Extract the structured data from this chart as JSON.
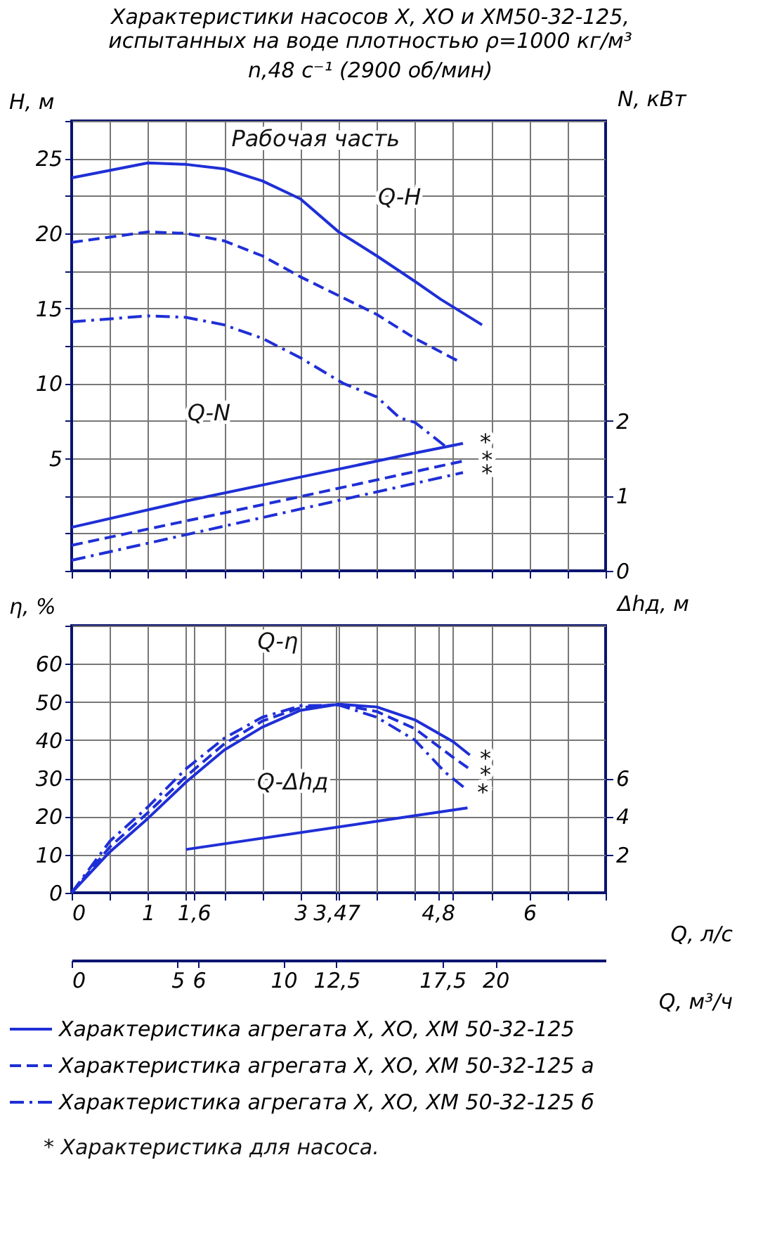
{
  "chart_data": [
    {
      "type": "line",
      "title": "Характеристики насосов Х, ХО и ХМ50-32-125,\nиспытанных на воде плотностью ρ=1000 кг/м³",
      "subtitle": "n,48 с⁻¹ (2900 об/мин)",
      "ylabel": "H, м",
      "y2label": "N, кВт",
      "xlim": [
        0,
        7
      ],
      "xticks": [
        0,
        {
          "value": 0.5,
          "label": null
        },
        1,
        {
          "value": 1.5,
          "label": null
        },
        2,
        {
          "value": 2.5,
          "label": null
        },
        3,
        {
          "value": 3.5,
          "label": null
        },
        4,
        {
          "value": 4.5,
          "label": null
        },
        5,
        {
          "value": 5.5,
          "label": null
        },
        6,
        {
          "value": 6.5,
          "label": null
        },
        7
      ],
      "ylim": [
        -2.5,
        27.5
      ],
      "yticks": [
        {
          "value": -2.5,
          "label": null
        },
        {
          "value": 0,
          "label": null
        },
        {
          "value": 2.5,
          "label": null
        },
        5,
        {
          "value": 7.5,
          "label": null
        },
        10,
        {
          "value": 12.5,
          "label": null
        },
        15,
        {
          "value": 17.5,
          "label": null
        },
        20,
        {
          "value": 22.5,
          "label": null
        },
        25,
        {
          "value": 27.5,
          "label": null
        }
      ],
      "y2lim": [
        0,
        6
      ],
      "y2ticks": [
        0,
        1,
        2
      ],
      "grid": true,
      "tick_labels": "y",
      "series": [
        {
          "color": "#1f2fd6",
          "line_style": "solid",
          "x": [
            0,
            1,
            1.5,
            2,
            2.5,
            3,
            3.5,
            4,
            4.5,
            4.84,
            5.38
          ],
          "values": [
            23.7,
            24.7,
            24.6,
            24.3,
            23.5,
            22.3,
            20.1,
            18.5,
            16.8,
            15.6,
            13.9
          ]
        },
        {
          "color": "#1f2fd6",
          "line_style": "dashed",
          "x": [
            0,
            1,
            1.5,
            2,
            2.5,
            3,
            3.56,
            4,
            4.5,
            5.1
          ],
          "values": [
            19.4,
            20.1,
            20.0,
            19.5,
            18.5,
            17.1,
            15.7,
            14.6,
            13.0,
            11.4
          ]
        },
        {
          "color": "#1f2fd6",
          "line_style": "dashdot",
          "x": [
            0,
            1,
            1.5,
            2,
            2.5,
            3,
            3.56,
            4,
            4.3,
            4.5,
            4.9
          ],
          "values": [
            14.1,
            14.5,
            14.4,
            13.9,
            13.0,
            11.7,
            10.0,
            9.1,
            7.7,
            7.4,
            5.8
          ]
        },
        {
          "color": "#1f2fd6",
          "line_style": "solid",
          "axis": "y2",
          "x": [
            0,
            1.5,
            3,
            4.5,
            5.13
          ],
          "values": [
            0.58,
            0.93,
            1.25,
            1.57,
            1.7
          ]
        },
        {
          "color": "#1f2fd6",
          "line_style": "dashed",
          "axis": "y2",
          "x": [
            0,
            3,
            5.16
          ],
          "values": [
            0.34,
            0.99,
            1.47
          ]
        },
        {
          "color": "#1f2fd6",
          "line_style": "dashdot",
          "axis": "y2",
          "x": [
            0,
            5.13
          ],
          "values": [
            0.14,
            1.31
          ]
        }
      ],
      "annotations": [
        "Рабочая часть",
        "Q-H",
        "Q-N",
        "*",
        "*",
        "*"
      ]
    },
    {
      "type": "line",
      "ylabel": "η, %",
      "y2label": "Δhд, м",
      "xlabel": "Q, л/с",
      "x2label": "Q, м³/ч",
      "xlim": [
        0,
        7
      ],
      "xticks": [
        0,
        1,
        {
          "value": 1.6,
          "label": "1,6"
        },
        3,
        {
          "value": 3.47,
          "label": "3,47"
        },
        {
          "value": 4.8,
          "label": "4,8"
        },
        6,
        {
          "value": 0.5,
          "label": null
        },
        {
          "value": 1.5,
          "label": null
        },
        {
          "value": 2,
          "label": null
        },
        {
          "value": 2.5,
          "label": null
        },
        {
          "value": 3.5,
          "label": null
        },
        {
          "value": 4,
          "label": null
        },
        {
          "value": 4.5,
          "label": null
        },
        {
          "value": 5,
          "label": null
        },
        {
          "value": 5.5,
          "label": null
        },
        {
          "value": 6.5,
          "label": null
        },
        {
          "value": 7,
          "label": null
        }
      ],
      "x2lim": [
        0,
        25.2
      ],
      "x2ticks": [
        0,
        5,
        6,
        10,
        {
          "value": 12.5,
          "label": "12,5"
        },
        {
          "value": 17.5,
          "label": "17,5"
        },
        20
      ],
      "ylim": [
        0,
        70
      ],
      "yticks": [
        0,
        10,
        20,
        30,
        40,
        50,
        60,
        {
          "value": 70,
          "label": null
        }
      ],
      "y2lim": [
        0,
        14
      ],
      "y2ticks": [
        2,
        4,
        6
      ],
      "grid": true,
      "legend": "bottom",
      "series": [
        {
          "name": "Характеристика агрегата Х, ХО, ХМ 50-32-125",
          "color": "#1f2fd6",
          "line_style": "solid",
          "x": [
            0,
            0.5,
            1,
            1.5,
            2,
            2.5,
            3,
            3.5,
            4,
            4.5,
            5,
            5.22
          ],
          "values": [
            0,
            10.7,
            19.5,
            29,
            37.4,
            43.4,
            47.8,
            49.4,
            48.7,
            45.3,
            39.6,
            36.1
          ]
        },
        {
          "name": "Характеристика агрегата Х, ХО, ХМ 50-32-125 а",
          "color": "#1f2fd6",
          "line_style": "dashed",
          "x": [
            0,
            0.5,
            1,
            1.5,
            2,
            2.5,
            3,
            3.5,
            4,
            4.5,
            5,
            5.22
          ],
          "values": [
            0,
            12,
            21,
            30.5,
            39,
            45,
            48.5,
            49.4,
            47.5,
            43,
            35.5,
            32.4
          ]
        },
        {
          "name": "Характеристика агрегата Х, ХО, ХМ 50-32-125 б",
          "color": "#1f2fd6",
          "line_style": "dashdot",
          "x": [
            0,
            0.5,
            1,
            1.5,
            2,
            2.5,
            3,
            3.5,
            4,
            4.5,
            4.9,
            5.15
          ],
          "values": [
            0,
            13.5,
            22.5,
            32.5,
            40.5,
            46,
            49,
            49.2,
            46,
            40,
            31.5,
            27.5
          ]
        },
        {
          "color": "#1f2fd6",
          "line_style": "solid",
          "axis": "y2",
          "x": [
            1.5,
            5.19
          ],
          "values": [
            2.27,
            4.45
          ]
        }
      ],
      "annotations": [
        "Q-η",
        "Q-Δhд",
        "*",
        "*",
        "*",
        "* Характеристика для насоса."
      ]
    }
  ]
}
